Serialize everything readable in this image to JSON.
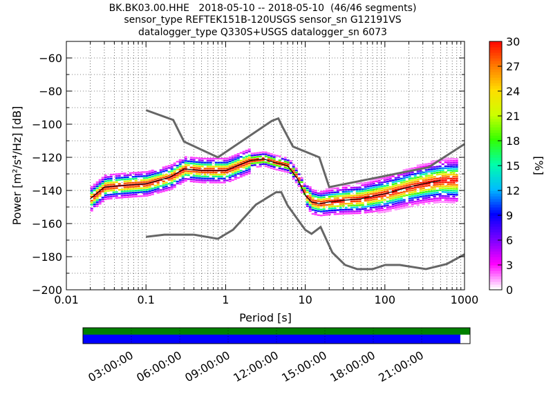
{
  "header": {
    "title_line1": "BK.BK03.00.HHE   2018-05-10 -- 2018-05-10  (46/46 segments)",
    "title_line2": "sensor_type REFTEK151B-120USGS sensor_sn G12191VS",
    "title_line3": "datalogger_type Q330S+USGS datalogger_sn 6073"
  },
  "chart_data": {
    "type": "heatmap",
    "xlabel": "Period [s]",
    "ylabel": "Power [m²/s⁴/Hz] [dB]",
    "xscale": "log",
    "xlim": [
      0.01,
      1000
    ],
    "ylim": [
      -200,
      -50
    ],
    "x_ticks": [
      "0.01",
      "0.1",
      "1",
      "10",
      "100",
      "1000"
    ],
    "y_ticks": [
      "−60",
      "−80",
      "−100",
      "−120",
      "−140",
      "−160",
      "−180",
      "−200"
    ],
    "y_tick_values": [
      -60,
      -80,
      -100,
      -120,
      -140,
      -160,
      -180,
      -200
    ],
    "grid": true,
    "colorbar": {
      "label": "[%]",
      "range": [
        0,
        30
      ],
      "ticks": [
        "0",
        "3",
        "6",
        "9",
        "12",
        "15",
        "18",
        "21",
        "24",
        "27",
        "30"
      ],
      "colors": [
        "#ffffff",
        "#ff00ff",
        "#7700ff",
        "#0000ff",
        "#00bbff",
        "#00ffaa",
        "#33ff00",
        "#ccff00",
        "#ffdd00",
        "#ff7700",
        "#ff0000"
      ]
    },
    "noise_models": {
      "high": {
        "x": [
          0.1,
          0.22,
          0.3,
          0.8,
          3.8,
          4.6,
          5.1,
          7.0,
          15.0,
          20.0,
          354.0,
          1000.0
        ],
        "y": [
          -91.5,
          -97.4,
          -110.5,
          -120.0,
          -98.0,
          -96.5,
          -101.0,
          -113.5,
          -120.0,
          -138.0,
          -126.0,
          -112.0
        ]
      },
      "low": {
        "x": [
          0.1,
          0.17,
          0.4,
          0.8,
          1.24,
          2.4,
          4.3,
          5.0,
          6.0,
          10.0,
          12.0,
          15.6,
          21.9,
          31.6,
          45.0,
          70.0,
          101.0,
          154.0,
          328.0,
          600.0,
          1000.0
        ],
        "y": [
          -168.0,
          -166.7,
          -166.7,
          -169.2,
          -163.7,
          -148.6,
          -141.1,
          -141.1,
          -149.0,
          -163.8,
          -166.2,
          -162.1,
          -177.5,
          -185.0,
          -187.5,
          -187.5,
          -185.0,
          -185.0,
          -187.5,
          -184.4,
          -178.6
        ]
      }
    },
    "mode_curve": {
      "x": [
        0.02,
        0.03,
        0.05,
        0.1,
        0.2,
        0.3,
        0.5,
        1,
        2,
        3,
        4,
        5,
        6,
        8,
        10,
        12,
        15,
        20,
        30,
        50,
        100,
        200,
        300,
        500
      ],
      "y": [
        -145,
        -138,
        -137,
        -136,
        -132,
        -127,
        -128,
        -128,
        -122,
        -121,
        -123,
        -124,
        -125,
        -133,
        -143,
        -147,
        -148,
        -147,
        -146,
        -145,
        -142,
        -138,
        -136,
        -134
      ]
    },
    "color_bar_strips": [
      {
        "name": "data-availability",
        "color": "#008000",
        "coverage": 1.0
      },
      {
        "name": "psd-segments",
        "color": "#0000ff",
        "coverage": 0.975
      }
    ],
    "time_ticks": [
      "03:00:00",
      "06:00:00",
      "09:00:00",
      "12:00:00",
      "15:00:00",
      "18:00:00",
      "21:00:00"
    ]
  }
}
